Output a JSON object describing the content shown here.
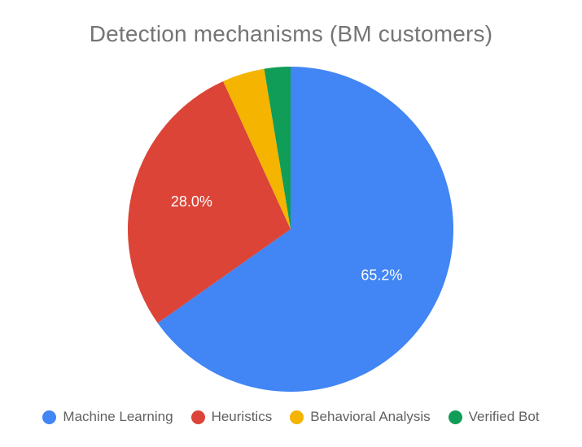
{
  "chart_data": {
    "type": "pie",
    "title": "Detection mechanisms (BM customers)",
    "slices": [
      {
        "label": "Machine Learning",
        "value": 65.2,
        "color": "#4285F4",
        "data_label": "65.2%"
      },
      {
        "label": "Heuristics",
        "value": 28.0,
        "color": "#DB4437",
        "data_label": "28.0%"
      },
      {
        "label": "Behavioral Analysis",
        "value": 4.2,
        "color": "#F4B400",
        "data_label": ""
      },
      {
        "label": "Verified Bot",
        "value": 2.6,
        "color": "#0F9D58",
        "data_label": ""
      }
    ],
    "legend_position": "bottom"
  }
}
